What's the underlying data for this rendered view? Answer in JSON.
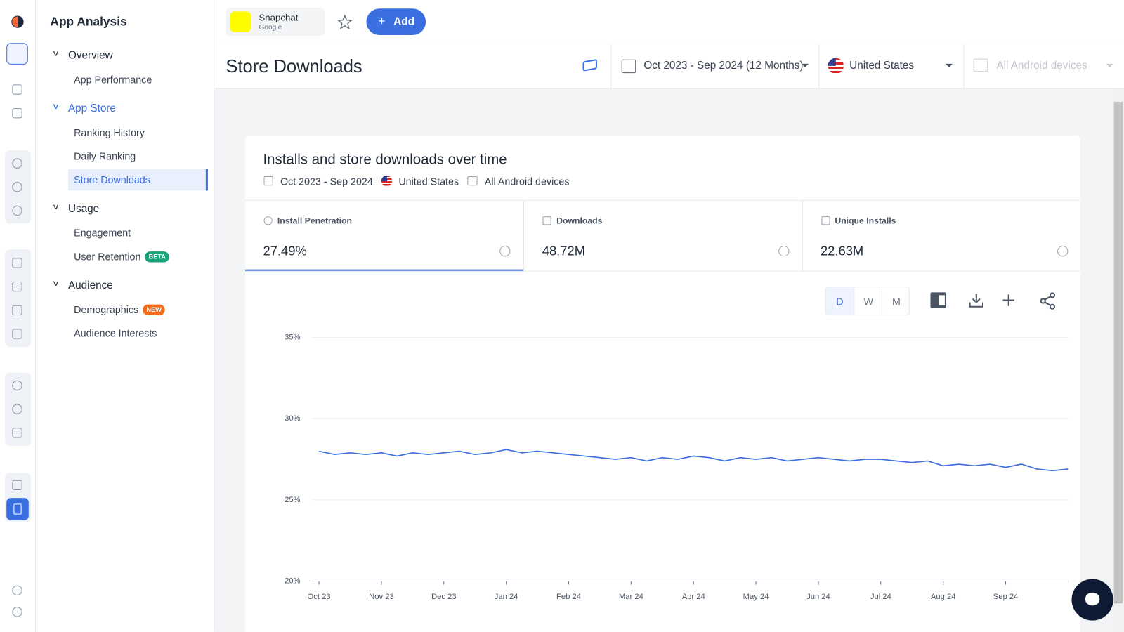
{
  "app": {
    "name": "Snapchat",
    "store": "Google",
    "add": "Add"
  },
  "sidebar": {
    "title": "App Analysis",
    "sections": [
      {
        "label": "Overview",
        "items": [
          {
            "label": "App Performance"
          }
        ]
      },
      {
        "label": "App Store",
        "items": [
          {
            "label": "Ranking History"
          },
          {
            "label": "Daily Ranking"
          },
          {
            "label": "Store Downloads"
          }
        ]
      },
      {
        "label": "Usage",
        "items": [
          {
            "label": "Engagement"
          },
          {
            "label": "User Retention",
            "badge": "BETA"
          }
        ]
      },
      {
        "label": "Audience",
        "items": [
          {
            "label": "Demographics",
            "badge": "NEW"
          },
          {
            "label": "Audience Interests"
          }
        ]
      }
    ]
  },
  "header": {
    "title": "Store Downloads",
    "date_range": "Oct 2023 - Sep 2024 (12 Months)",
    "country": "United States",
    "devices": "All Android devices"
  },
  "card": {
    "title": "Installs and store downloads over time",
    "date_range": "Oct 2023 - Sep 2024",
    "country": "United States",
    "devices": "All Android devices",
    "metrics": [
      {
        "label": "Install Penetration",
        "value": "27.49%"
      },
      {
        "label": "Downloads",
        "value": "48.72M"
      },
      {
        "label": "Unique Installs",
        "value": "22.63M"
      }
    ],
    "granularity": [
      "D",
      "W",
      "M"
    ]
  },
  "chart_data": {
    "type": "line",
    "categories": [
      "Oct 23",
      null,
      null,
      null,
      "Nov 23",
      null,
      null,
      null,
      "Dec 23",
      null,
      null,
      null,
      "Jan 24",
      null,
      null,
      null,
      "Feb 24",
      null,
      null,
      null,
      "Mar 24",
      null,
      null,
      null,
      "Apr 24",
      null,
      null,
      null,
      "May 24",
      null,
      null,
      null,
      "Jun 24",
      null,
      null,
      null,
      "Jul 24",
      null,
      null,
      null,
      "Aug 24",
      null,
      null,
      null,
      "Sep 24",
      null,
      null,
      null,
      null
    ],
    "series": [
      {
        "color": "#3b6fe0",
        "values": [
          28.0,
          27.8,
          27.9,
          27.8,
          27.9,
          27.7,
          27.9,
          27.8,
          27.9,
          28.0,
          27.8,
          27.9,
          28.1,
          27.9,
          28.0,
          27.9,
          27.8,
          27.7,
          27.6,
          27.5,
          27.6,
          27.4,
          27.6,
          27.5,
          27.7,
          27.6,
          27.4,
          27.6,
          27.5,
          27.6,
          27.4,
          27.5,
          27.6,
          27.5,
          27.4,
          27.5,
          27.5,
          27.4,
          27.3,
          27.4,
          27.1,
          27.2,
          27.1,
          27.2,
          27.0,
          27.2,
          26.9,
          26.8,
          26.9
        ]
      }
    ],
    "ylim": [
      20,
      35
    ],
    "yticks": [
      {
        "value": 20,
        "label": "20%"
      },
      {
        "value": 25,
        "label": "25%"
      },
      {
        "value": 30,
        "label": "30%"
      },
      {
        "value": 35,
        "label": "35%"
      }
    ],
    "grid": true
  }
}
